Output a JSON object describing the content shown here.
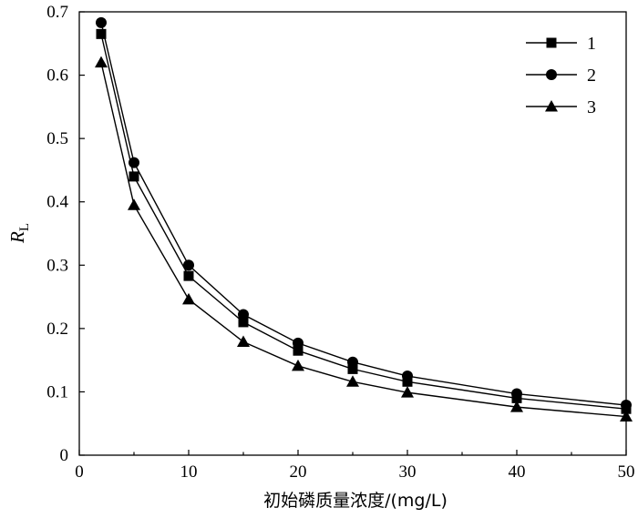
{
  "chart_data": {
    "type": "line",
    "xlabel": "初始磷质量浓度/(mg/L)",
    "ylabel_main": "R",
    "ylabel_sub": "L",
    "xlim": [
      0,
      50
    ],
    "ylim": [
      0,
      0.7
    ],
    "x_ticks": [
      "0",
      "10",
      "20",
      "30",
      "40",
      "50"
    ],
    "y_ticks": [
      "0",
      "0.1",
      "0.2",
      "0.3",
      "0.4",
      "0.5",
      "0.6",
      "0.7"
    ],
    "legend_position": "top-right",
    "x": [
      2,
      5,
      10,
      15,
      20,
      25,
      30,
      40,
      50
    ],
    "series": [
      {
        "name": "1",
        "marker": "square",
        "values": [
          0.665,
          0.44,
          0.283,
          0.21,
          0.165,
          0.136,
          0.116,
          0.09,
          0.073
        ]
      },
      {
        "name": "2",
        "marker": "circle",
        "values": [
          0.683,
          0.462,
          0.3,
          0.222,
          0.177,
          0.147,
          0.125,
          0.097,
          0.079
        ]
      },
      {
        "name": "3",
        "marker": "triangle",
        "values": [
          0.62,
          0.395,
          0.246,
          0.179,
          0.141,
          0.116,
          0.099,
          0.076,
          0.061
        ]
      }
    ]
  }
}
